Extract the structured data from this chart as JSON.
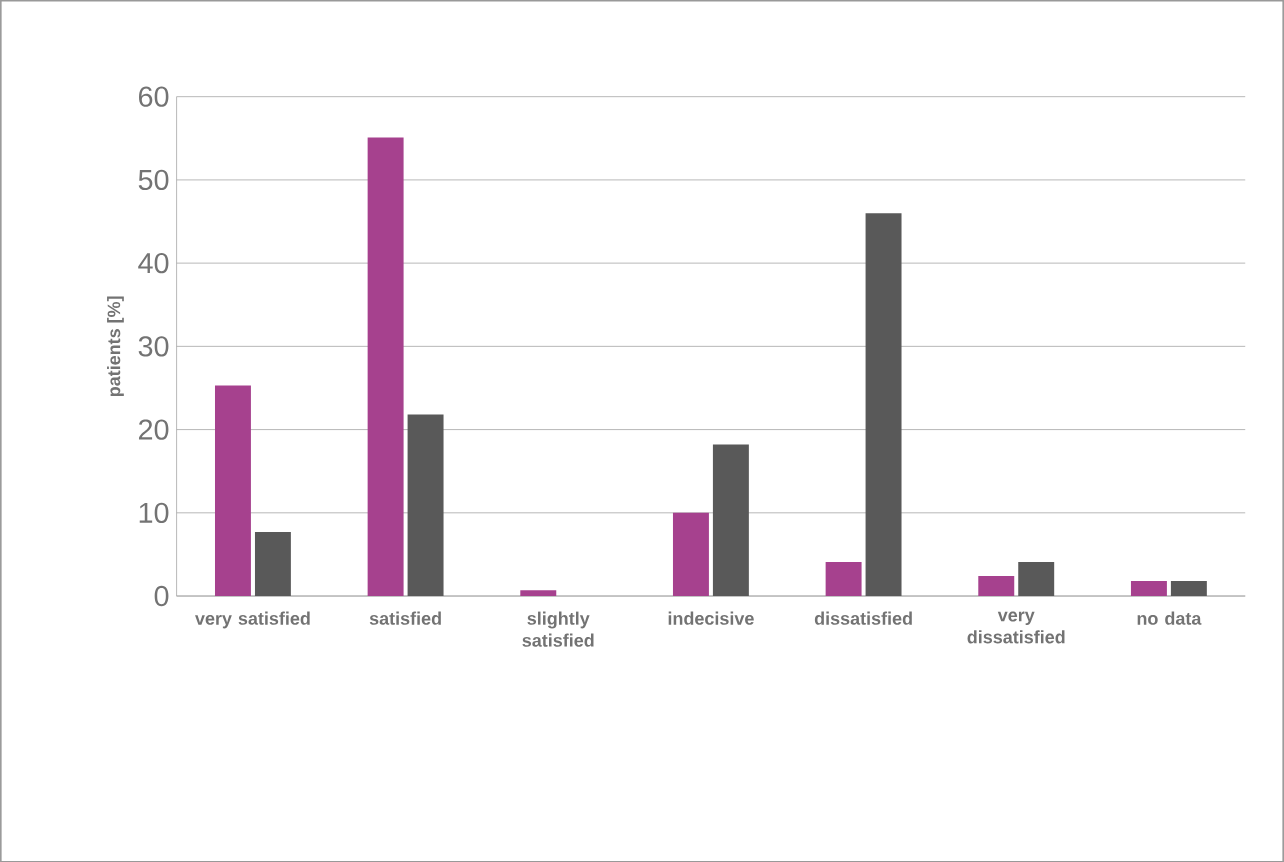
{
  "chart_data": {
    "type": "bar",
    "ylabel": "patients [%]",
    "categories": [
      "very satisfied",
      "satisfied",
      "slightly satisfied",
      "indecisive",
      "dissatisfied",
      "very dissatisfied",
      "no data"
    ],
    "series": [
      {
        "color": "#a6418e",
        "values": [
          25.3,
          55.1,
          0.7,
          10,
          4.1,
          2.4,
          1.8
        ]
      },
      {
        "color": "#595959",
        "values": [
          7.7,
          21.8,
          0,
          18.2,
          46,
          4.1,
          1.8
        ]
      }
    ],
    "ylim": [
      0,
      60
    ],
    "yticks": [
      0,
      10,
      20,
      30,
      40,
      50,
      60
    ],
    "grid": "y"
  }
}
